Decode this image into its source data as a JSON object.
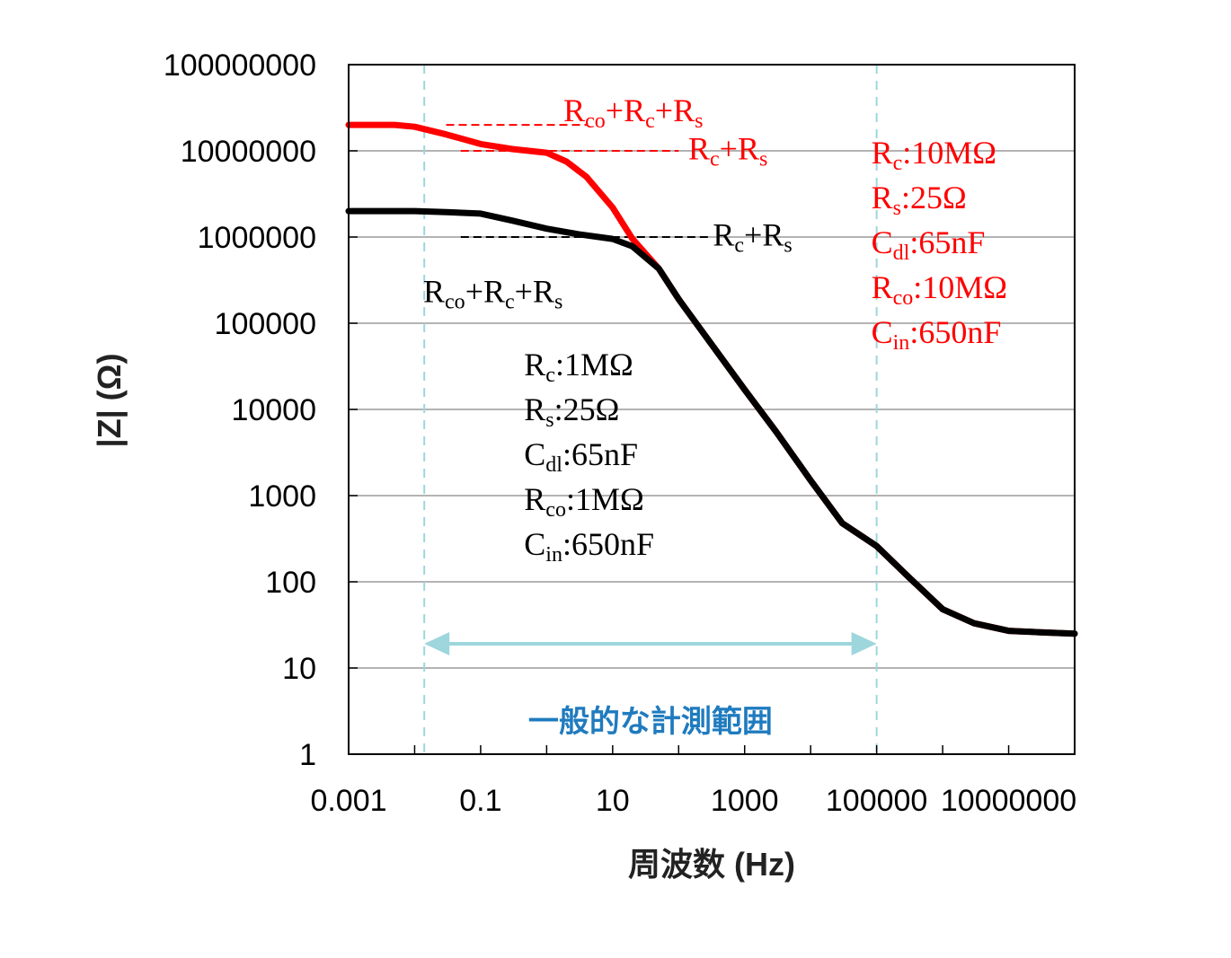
{
  "chart_data": {
    "type": "line",
    "xlabel": "周波数 (Hz)",
    "ylabel": "|Z| (Ω)",
    "x_scale": "log",
    "y_scale": "log",
    "xlim": [
      0.001,
      100000000
    ],
    "ylim": [
      1,
      100000000
    ],
    "x_ticks": [
      0.001,
      0.01,
      0.1,
      1,
      10,
      100,
      1000,
      10000,
      100000,
      1000000,
      10000000,
      100000000
    ],
    "x_tick_labels": [
      {
        "x": 0.001,
        "label": "0.001"
      },
      {
        "x": 0.1,
        "label": "0.1"
      },
      {
        "x": 10,
        "label": "10"
      },
      {
        "x": 1000,
        "label": "1000"
      },
      {
        "x": 100000,
        "label": "100000"
      },
      {
        "x": 10000000,
        "label": "10000000"
      }
    ],
    "y_ticks": [
      {
        "y": 1,
        "label": "1"
      },
      {
        "y": 10,
        "label": "10"
      },
      {
        "y": 100,
        "label": "100"
      },
      {
        "y": 1000,
        "label": "1000"
      },
      {
        "y": 10000,
        "label": "10000"
      },
      {
        "y": 100000,
        "label": "100000"
      },
      {
        "y": 1000000,
        "label": "1000000"
      },
      {
        "y": 10000000,
        "label": "10000000"
      },
      {
        "y": 100000000,
        "label": "100000000"
      }
    ],
    "grid": "horizontal",
    "colors": {
      "red_series": "#ff0000",
      "black_series": "#000000",
      "range": "#9dd6dc",
      "range_text": "#1f7bbf"
    },
    "series": [
      {
        "color": "#ff0000",
        "points": [
          [
            0.001,
            20000000
          ],
          [
            0.005,
            20000000
          ],
          [
            0.01,
            19000000
          ],
          [
            0.03,
            15500000
          ],
          [
            0.1,
            12000000
          ],
          [
            0.3,
            10500000
          ],
          [
            1,
            9500000
          ],
          [
            2,
            7500000
          ],
          [
            4,
            5000000
          ],
          [
            10,
            2200000
          ],
          [
            20,
            950000
          ],
          [
            50,
            430000
          ],
          [
            100,
            190000
          ],
          [
            300,
            60000
          ],
          [
            1000,
            17000
          ],
          [
            3000,
            5500
          ],
          [
            10000,
            1500
          ],
          [
            30000,
            480
          ],
          [
            100000,
            260
          ],
          [
            300000,
            115
          ],
          [
            1000000,
            48
          ],
          [
            3000000,
            33
          ],
          [
            10000000,
            27
          ],
          [
            30000000,
            26
          ],
          [
            100000000,
            25
          ]
        ]
      },
      {
        "color": "#000000",
        "points": [
          [
            0.001,
            2000000
          ],
          [
            0.01,
            2000000
          ],
          [
            0.03,
            1950000
          ],
          [
            0.1,
            1870000
          ],
          [
            0.3,
            1550000
          ],
          [
            1,
            1250000
          ],
          [
            3,
            1080000
          ],
          [
            10,
            950000
          ],
          [
            20,
            780000
          ],
          [
            50,
            430000
          ],
          [
            100,
            190000
          ],
          [
            300,
            60000
          ],
          [
            1000,
            17000
          ],
          [
            3000,
            5500
          ],
          [
            10000,
            1500
          ],
          [
            30000,
            480
          ],
          [
            100000,
            260
          ],
          [
            300000,
            115
          ],
          [
            1000000,
            48
          ],
          [
            3000000,
            33
          ],
          [
            10000000,
            27
          ],
          [
            30000000,
            26
          ],
          [
            100000000,
            25
          ]
        ]
      }
    ],
    "reference_lines": [
      {
        "color": "#ff0000",
        "y": 20000000,
        "x_from": 0.03,
        "x_to": 4
      },
      {
        "color": "#ff0000",
        "y": 10000000,
        "x_from": 0.05,
        "x_to": 100
      },
      {
        "color": "#000000",
        "y": 1000000,
        "x_from": 0.05,
        "x_to": 300
      }
    ],
    "measurement_range": {
      "x_from": 0.014,
      "x_to": 100000,
      "label": "一般的な計測範囲"
    },
    "annotations": [
      {
        "id": "red-rco-rc-rs",
        "color": "#ff0000",
        "x": 1.8,
        "y": 22000000,
        "parts": [
          {
            "t": "R"
          },
          {
            "t": "co",
            "sub": true
          },
          {
            "t": "+R"
          },
          {
            "t": "c",
            "sub": true
          },
          {
            "t": "+R"
          },
          {
            "t": "s",
            "sub": true
          }
        ]
      },
      {
        "id": "red-rc-rs",
        "color": "#ff0000",
        "x": 140,
        "y": 8000000,
        "parts": [
          {
            "t": "R"
          },
          {
            "t": "c",
            "sub": true
          },
          {
            "t": "+R"
          },
          {
            "t": "s",
            "sub": true
          }
        ]
      },
      {
        "id": "black-rc-rs",
        "color": "#000000",
        "x": 330,
        "y": 800000,
        "parts": [
          {
            "t": "R"
          },
          {
            "t": "c",
            "sub": true
          },
          {
            "t": "+R"
          },
          {
            "t": "s",
            "sub": true
          }
        ]
      },
      {
        "id": "black-rco-rc-rs",
        "color": "#000000",
        "x": 0.0135,
        "y": 175000,
        "parts": [
          {
            "t": "R"
          },
          {
            "t": "co",
            "sub": true
          },
          {
            "t": "+R"
          },
          {
            "t": "c",
            "sub": true
          },
          {
            "t": "+R"
          },
          {
            "t": "s",
            "sub": true
          }
        ]
      }
    ],
    "parameter_blocks": [
      {
        "id": "red-params",
        "color": "#ff0000",
        "x": 100000,
        "y": 10000000,
        "lines": [
          [
            {
              "t": "R"
            },
            {
              "t": "c",
              "sub": true
            },
            {
              "t": ":10MΩ"
            }
          ],
          [
            {
              "t": "R"
            },
            {
              "t": "s",
              "sub": true
            },
            {
              "t": ":25Ω"
            }
          ],
          [
            {
              "t": "C"
            },
            {
              "t": "dl",
              "sub": true
            },
            {
              "t": ":65nF"
            }
          ],
          [
            {
              "t": "R"
            },
            {
              "t": "co",
              "sub": true
            },
            {
              "t": ":10MΩ"
            }
          ],
          [
            {
              "t": "C"
            },
            {
              "t": "in",
              "sub": true
            },
            {
              "t": ":650nF"
            }
          ]
        ]
      },
      {
        "id": "black-params",
        "color": "#000000",
        "x": 0.55,
        "y": 35000,
        "lines": [
          [
            {
              "t": "R"
            },
            {
              "t": "c",
              "sub": true
            },
            {
              "t": ":1MΩ"
            }
          ],
          [
            {
              "t": "R"
            },
            {
              "t": "s",
              "sub": true
            },
            {
              "t": ":25Ω"
            }
          ],
          [
            {
              "t": "C"
            },
            {
              "t": "dl",
              "sub": true
            },
            {
              "t": ":65nF"
            }
          ],
          [
            {
              "t": "R"
            },
            {
              "t": "co",
              "sub": true
            },
            {
              "t": ":1MΩ"
            }
          ],
          [
            {
              "t": "C"
            },
            {
              "t": "in",
              "sub": true
            },
            {
              "t": ":650nF"
            }
          ]
        ]
      }
    ]
  }
}
